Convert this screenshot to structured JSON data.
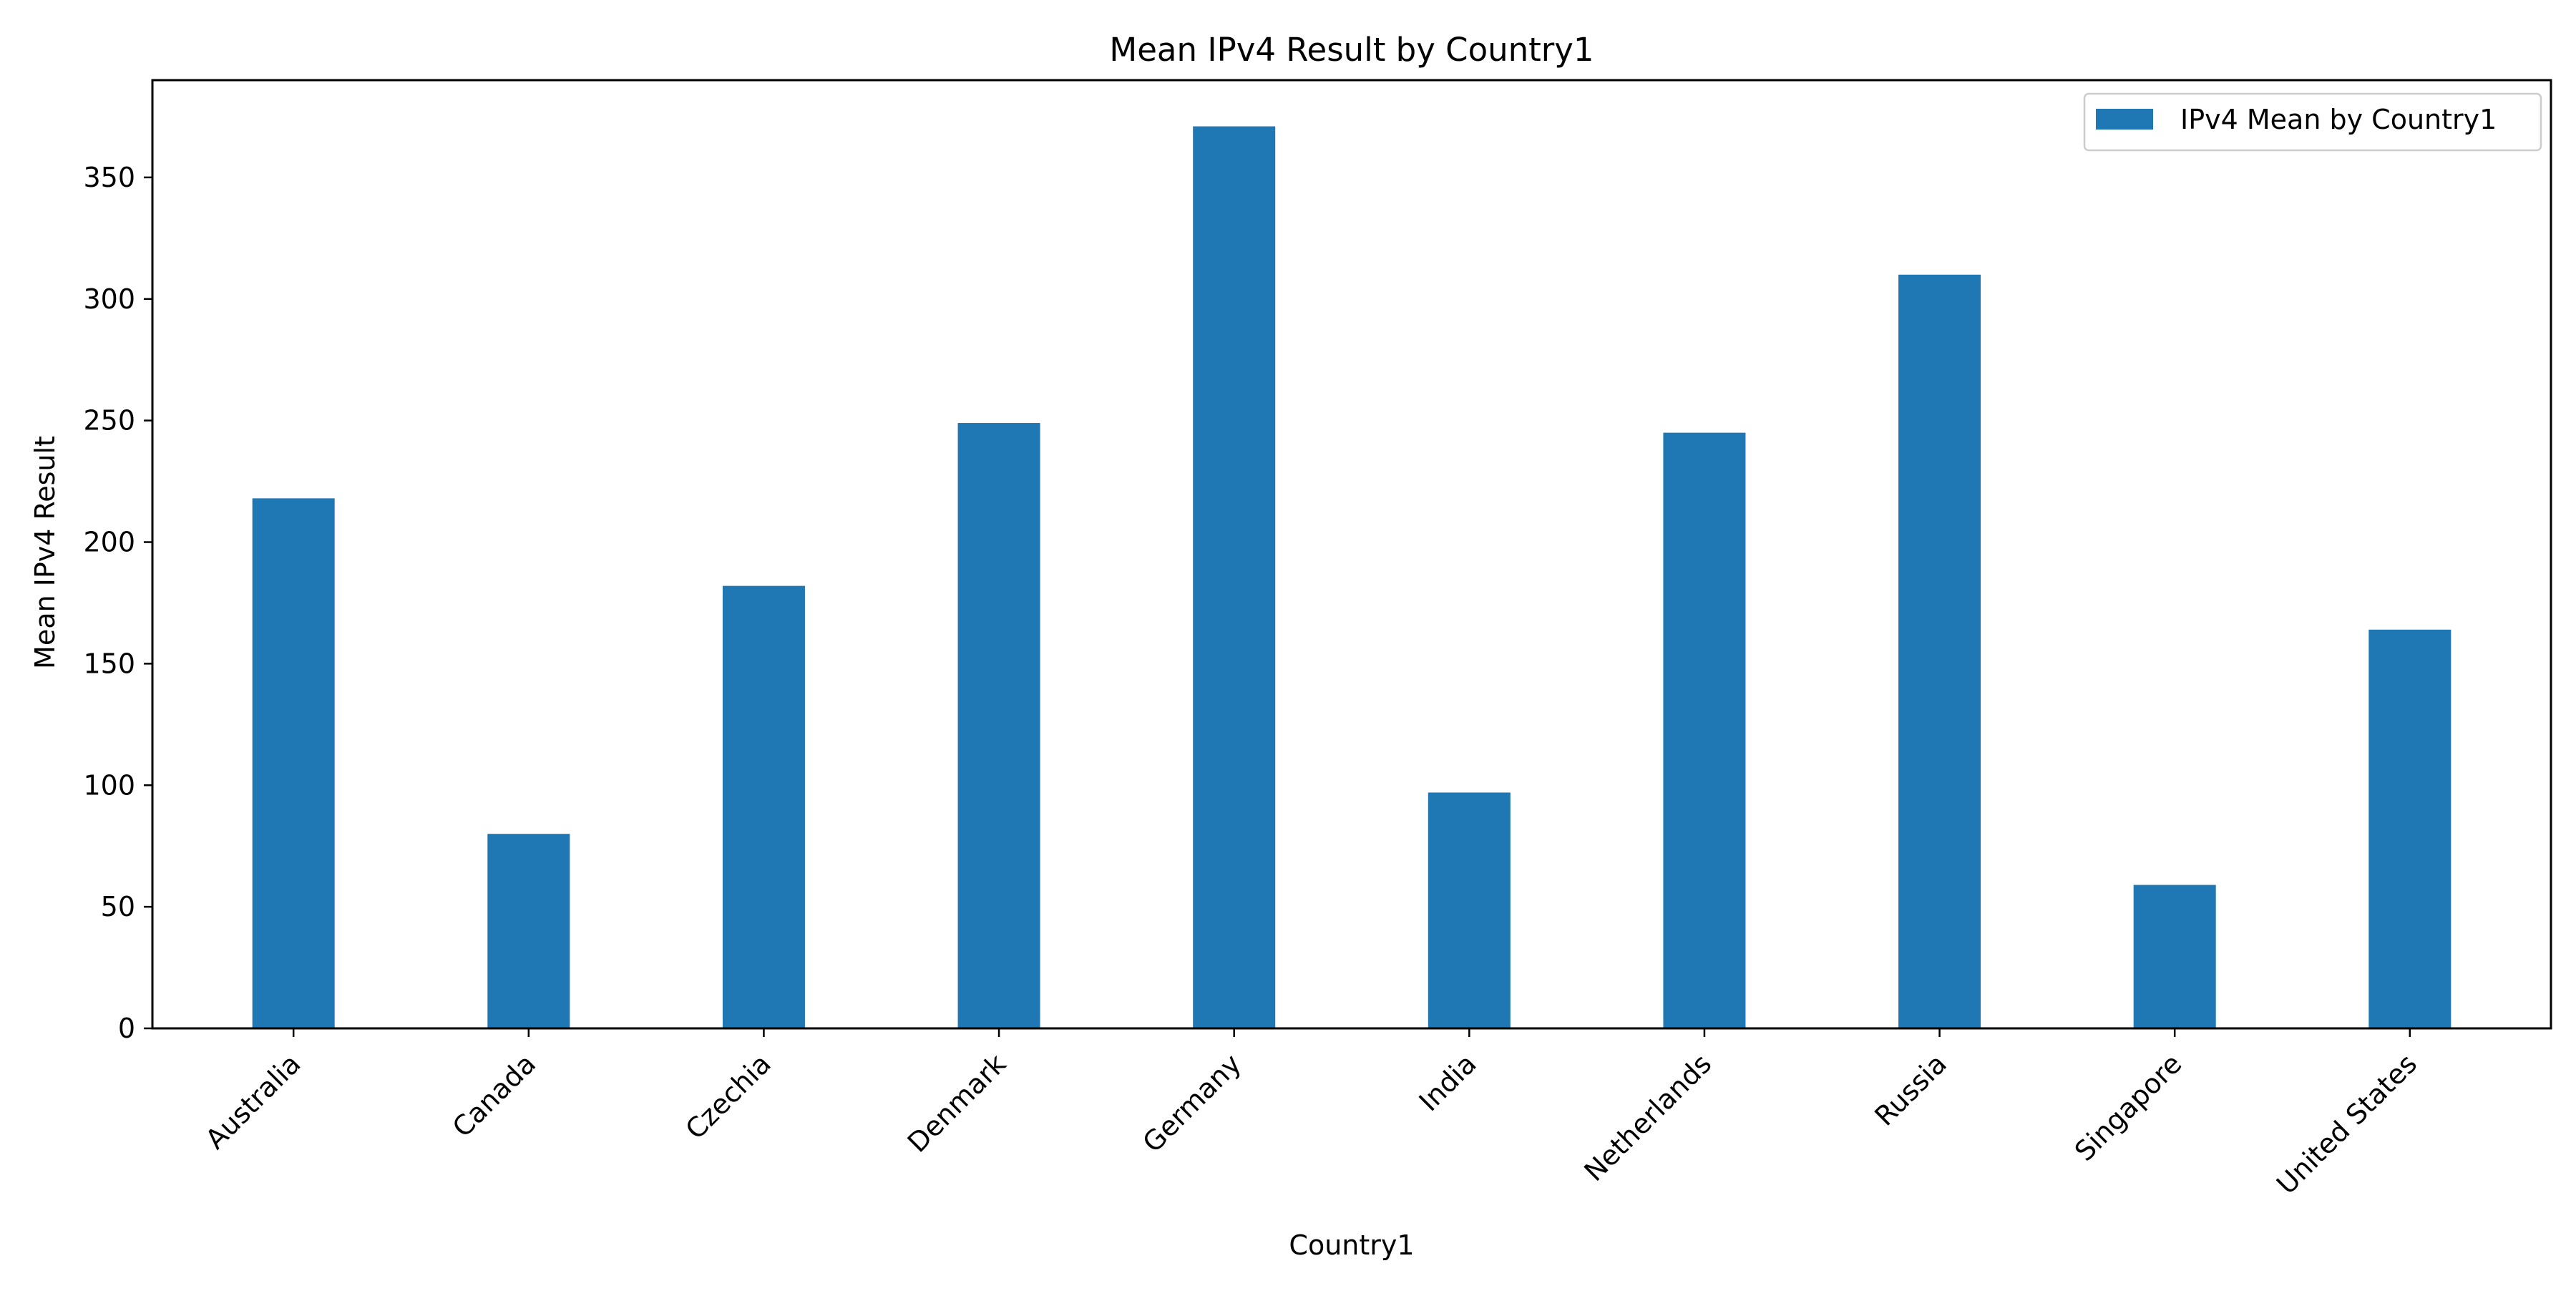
{
  "chart_data": {
    "type": "bar",
    "title": "Mean IPv4 Result by Country1",
    "xlabel": "Country1",
    "ylabel": "Mean IPv4 Result",
    "categories": [
      "Australia",
      "Canada",
      "Czechia",
      "Denmark",
      "Germany",
      "India",
      "Netherlands",
      "Russia",
      "Singapore",
      "United States"
    ],
    "series": [
      {
        "name": "IPv4 Mean by Country1",
        "values": [
          218,
          80,
          182,
          249,
          371,
          97,
          245,
          310,
          59,
          164
        ],
        "color": "#1f77b4"
      }
    ],
    "ylim": [
      0,
      390
    ],
    "yticks": [
      0,
      50,
      100,
      150,
      200,
      250,
      300,
      350
    ],
    "grid": false,
    "legend_position": "top-right"
  }
}
